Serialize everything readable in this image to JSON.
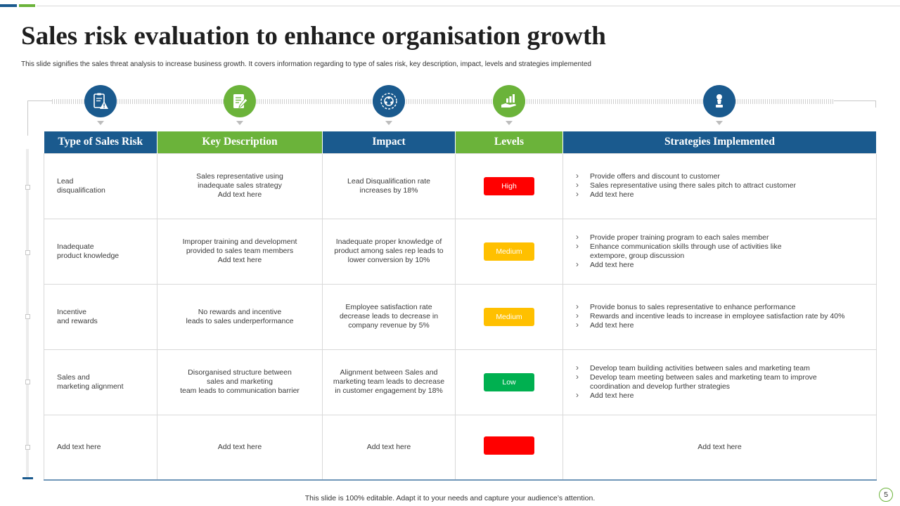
{
  "slide": {
    "title": "Sales risk evaluation to enhance organisation growth",
    "subtitle": "This slide signifies the sales threat analysis to increase business growth. It covers information regarding to type of sales risk, key description, impact, levels and strategies implemented",
    "footer": "This slide is 100% editable. Adapt it to your needs and capture your audience’s attention.",
    "page_number": "5"
  },
  "colors": {
    "blue": "#1a5a8e",
    "green": "#6bb33a",
    "high": "#ff0000",
    "medium": "#ffc000",
    "low": "#00b050"
  },
  "icons": [
    "clipboard-warning-icon",
    "checklist-pencil-icon",
    "network-target-icon",
    "hand-chart-icon",
    "chess-pawn-icon"
  ],
  "table": {
    "headers": [
      "Type of Sales Risk",
      "Key Description",
      "Impact",
      "Levels",
      "Strategies Implemented"
    ],
    "rows": [
      {
        "type": [
          "Lead",
          "disqualification"
        ],
        "description": [
          "Sales representative using",
          "inadequate sales strategy",
          "Add text here"
        ],
        "impact": [
          "Lead Disqualification rate",
          "increases by 18%"
        ],
        "level": "High",
        "level_color": "high",
        "strategies": [
          "Provide offers and discount to customer",
          "Sales representative using there sales pitch to attract customer",
          "Add text here"
        ]
      },
      {
        "type": [
          "Inadequate",
          "product knowledge"
        ],
        "description": [
          "Improper training and development",
          "provided to sales team members",
          "Add text here"
        ],
        "impact": [
          "Inadequate proper knowledge of",
          "product among sales rep leads to",
          "lower conversion by 10%"
        ],
        "level": "Medium",
        "level_color": "medium",
        "strategies": [
          "Provide proper training program to each sales member",
          "Enhance communication skills through use of activities like extempore, group discussion",
          "Add text here"
        ]
      },
      {
        "type": [
          "Incentive",
          "and rewards"
        ],
        "description": [
          "No rewards and incentive",
          "leads to sales underperformance"
        ],
        "impact": [
          "Employee  satisfaction rate",
          "decrease leads to decrease in",
          "company revenue by 5%"
        ],
        "level": "Medium",
        "level_color": "medium",
        "strategies": [
          "Provide bonus to sales representative to enhance performance",
          "Rewards and incentive leads to increase in employee satisfaction rate by 40%",
          "Add text here"
        ]
      },
      {
        "type": [
          "Sales and",
          "marketing alignment"
        ],
        "description": [
          "Disorganised structure between",
          "sales and marketing",
          "team leads to communication barrier"
        ],
        "impact": [
          "Alignment between Sales and",
          "marketing team leads to decrease",
          "in customer engagement by 18%"
        ],
        "level": "Low",
        "level_color": "low",
        "strategies": [
          "Develop team building activities between sales and marketing team",
          "Develop team meeting between sales and marketing team to improve coordination and develop further strategies",
          "Add text here"
        ]
      },
      {
        "type": [
          "Add text here"
        ],
        "description": [
          "Add text here"
        ],
        "impact": [
          "Add text here"
        ],
        "level": "",
        "level_color": "high",
        "strategies_plain": "Add text here"
      }
    ]
  }
}
